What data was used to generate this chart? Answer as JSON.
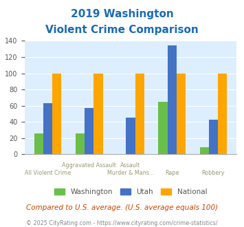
{
  "title_line1": "2019 Washington",
  "title_line2": "Violent Crime Comparison",
  "categories": [
    "All Violent Crime",
    "Aggravated Assault",
    "Murder & Mans...",
    "Rape",
    "Robbery"
  ],
  "top_labels": [
    "",
    "Aggravated Assault",
    "Assault",
    "",
    ""
  ],
  "bottom_labels": [
    "All Violent Crime",
    "",
    "Murder & Mans...",
    "Rape",
    "Robbery"
  ],
  "washington": [
    26,
    26,
    0,
    65,
    9
  ],
  "utah": [
    63,
    57,
    45,
    134,
    43
  ],
  "national": [
    100,
    100,
    100,
    100,
    100
  ],
  "color_washington": "#6abf4b",
  "color_utah": "#4472c4",
  "color_national": "#ffa500",
  "plot_bg": "#ddeeff",
  "ylim": [
    0,
    140
  ],
  "yticks": [
    0,
    20,
    40,
    60,
    80,
    100,
    120,
    140
  ],
  "footnote": "Compared to U.S. average. (U.S. average equals 100)",
  "copyright": "© 2025 CityRating.com - https://www.cityrating.com/crime-statistics/",
  "legend_labels": [
    "Washington",
    "Utah",
    "National"
  ],
  "title_color": "#1a6bb5",
  "footnote_color": "#cc4400",
  "copyright_color": "#888888"
}
